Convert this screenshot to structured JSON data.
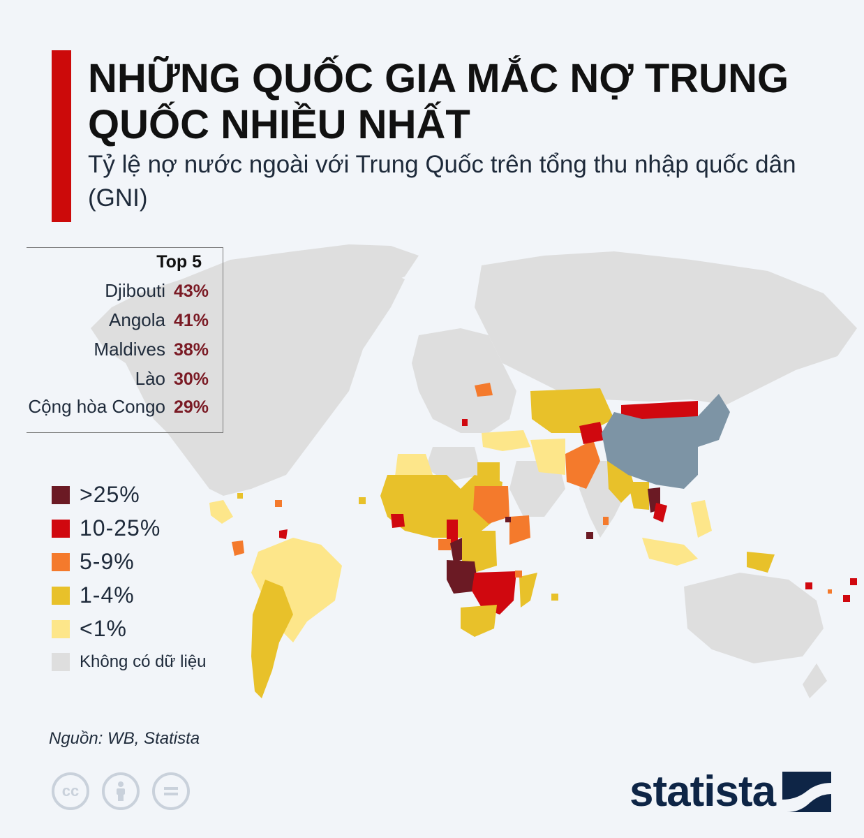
{
  "title": "NHỮNG QUỐC GIA MẮC NỢ TRUNG QUỐC NHIỀU NHẤT",
  "subtitle": "Tỷ lệ nợ nước ngoài với Trung Quốc trên tổng thu nhập quốc dân (GNI)",
  "top5": {
    "heading": "Top 5",
    "items": [
      {
        "country": "Djibouti",
        "value": "43%"
      },
      {
        "country": "Angola",
        "value": "41%"
      },
      {
        "country": "Maldives",
        "value": "38%"
      },
      {
        "country": "Lào",
        "value": "30%"
      },
      {
        "country": "Cộng hòa Congo",
        "value": "29%"
      }
    ]
  },
  "legend": [
    {
      "label": ">25%",
      "color": "#6b1a24"
    },
    {
      "label": "10-25%",
      "color": "#d0080f"
    },
    {
      "label": "5-9%",
      "color": "#f47a2c"
    },
    {
      "label": "1-4%",
      "color": "#e8c12a"
    },
    {
      "label": "<1%",
      "color": "#fde68a"
    },
    {
      "label": "Không có dữ liệu",
      "color": "#dedede"
    }
  ],
  "china_color": "#7d94a5",
  "accent_color": "#cc0a0a",
  "source": "Nguồn: WB, Statista",
  "brand": "statista",
  "license_icons": [
    "cc-icon",
    "attribution-icon",
    "no-derivatives-icon"
  ]
}
